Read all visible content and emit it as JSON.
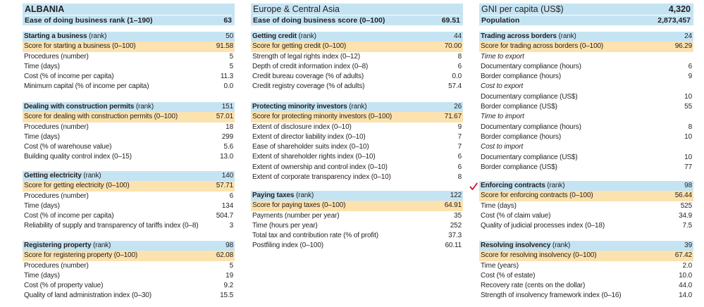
{
  "header": {
    "country": "ALBANIA",
    "region": "Europe & Central Asia",
    "gni_label": "GNI per capita (US$)",
    "gni_value": "4,320",
    "ease_rank_label": "Ease of doing business rank (1–190)",
    "ease_rank_value": "63",
    "ease_score_label": "Ease of doing business score (0–100)",
    "ease_score_value": "69.51",
    "population_label": "Population",
    "population_value": "2,873,457"
  },
  "columns": [
    [
      {
        "title": "Starting a business",
        "rank_label": "(rank)",
        "rank": "50",
        "score_label": "Score for starting a business (0–100)",
        "score": "91.58",
        "rows": [
          {
            "label": "Procedures (number)",
            "value": "5"
          },
          {
            "label": "Time (days)",
            "value": "5"
          },
          {
            "label": "Cost (% of income per capita)",
            "value": "11.3"
          },
          {
            "label": "Minimum capital (% of income per capita)",
            "value": "0.0"
          }
        ]
      },
      {
        "title": "Dealing with construction permits",
        "rank_label": "(rank)",
        "rank": "151",
        "score_label": "Score for dealing with construction permits (0–100)",
        "score": "57.01",
        "rows": [
          {
            "label": "Procedures (number)",
            "value": "18"
          },
          {
            "label": "Time (days)",
            "value": "299"
          },
          {
            "label": "Cost (% of warehouse value)",
            "value": "5.6"
          },
          {
            "label": "Building quality control index (0–15)",
            "value": "13.0"
          }
        ]
      },
      {
        "title": "Getting electricity",
        "rank_label": "(rank)",
        "rank": "140",
        "score_label": "Score for getting electricity (0–100)",
        "score": "57.71",
        "rows": [
          {
            "label": "Procedures (number)",
            "value": "6"
          },
          {
            "label": "Time (days)",
            "value": "134"
          },
          {
            "label": "Cost (% of income per capita)",
            "value": "504.7"
          },
          {
            "label": "Reliability of supply and transparency of tariffs index (0–8)",
            "value": "3"
          }
        ]
      },
      {
        "title": "Registering property",
        "rank_label": "(rank)",
        "rank": "98",
        "score_label": "Score for registering property (0–100)",
        "score": "62.08",
        "rows": [
          {
            "label": "Procedures (number)",
            "value": "5"
          },
          {
            "label": "Time (days)",
            "value": "19"
          },
          {
            "label": "Cost (% of property value)",
            "value": "9.2"
          },
          {
            "label": "Quality of land administration index (0–30)",
            "value": "15.5"
          }
        ]
      }
    ],
    [
      {
        "title": "Getting credit",
        "rank_label": "(rank)",
        "rank": "44",
        "score_label": "Score for getting credit (0–100)",
        "score": "70.00",
        "rows": [
          {
            "label": "Strength of legal rights index (0–12)",
            "value": "8"
          },
          {
            "label": "Depth of credit information index (0–8)",
            "value": "6"
          },
          {
            "label": "Credit bureau coverage (% of adults)",
            "value": "0.0"
          },
          {
            "label": "Credit registry coverage (% of adults)",
            "value": "57.4"
          }
        ]
      },
      {
        "title": "Protecting minority investors",
        "rank_label": "(rank)",
        "rank": "26",
        "score_label": "Score for protecting minority investors (0–100)",
        "score": "71.67",
        "rows": [
          {
            "label": "Extent of disclosure index (0–10)",
            "value": "9"
          },
          {
            "label": "Extent of director liability index (0–10)",
            "value": "7"
          },
          {
            "label": "Ease of shareholder suits index (0–10)",
            "value": "7"
          },
          {
            "label": "Extent of shareholder rights index (0–10)",
            "value": "6"
          },
          {
            "label": "Extent of ownership and control index (0–10)",
            "value": "6"
          },
          {
            "label": "Extent of corporate transparency index (0–10)",
            "value": "8"
          }
        ]
      },
      {
        "title": "Paying taxes",
        "rank_label": "(rank)",
        "rank": "122",
        "score_label": "Score for paying taxes (0–100)",
        "score": "64.91",
        "rows": [
          {
            "label": "Payments (number per year)",
            "value": "35"
          },
          {
            "label": "Time (hours per year)",
            "value": "252"
          },
          {
            "label": "Total tax and contribution rate (% of profit)",
            "value": "37.3"
          },
          {
            "label": "Postfiling index (0–100)",
            "value": "60.11"
          }
        ]
      }
    ],
    [
      {
        "title": "Trading across borders",
        "rank_label": "(rank)",
        "rank": "24",
        "score_label": "Score for trading across borders (0–100)",
        "score": "96.29",
        "rows": [
          {
            "label": "Time to export",
            "value": "",
            "italic": true
          },
          {
            "label": "Documentary compliance (hours)",
            "value": "6"
          },
          {
            "label": "Border compliance (hours)",
            "value": "9"
          },
          {
            "label": "Cost to export",
            "value": "",
            "italic": true
          },
          {
            "label": "Documentary compliance (US$)",
            "value": "10"
          },
          {
            "label": "Border compliance (US$)",
            "value": "55"
          },
          {
            "label": "Time to import",
            "value": "",
            "italic": true
          },
          {
            "label": "Documentary compliance (hours)",
            "value": "8"
          },
          {
            "label": "Border compliance (hours)",
            "value": "10"
          },
          {
            "label": "Cost to import",
            "value": "",
            "italic": true
          },
          {
            "label": "Documentary compliance (US$)",
            "value": "10"
          },
          {
            "label": "Border compliance (US$)",
            "value": "77"
          }
        ]
      },
      {
        "title": "Enforcing contracts",
        "rank_label": "(rank)",
        "rank": "98",
        "score_label": "Score for enforcing contracts (0–100)",
        "score": "56.44",
        "rows": [
          {
            "label": "Time (days)",
            "value": "525"
          },
          {
            "label": "Cost (% of claim value)",
            "value": "34.9"
          },
          {
            "label": "Quality of judicial processes index (0–18)",
            "value": "7.5"
          }
        ]
      },
      {
        "title": "Resolving insolvency",
        "rank_label": "(rank)",
        "rank": "39",
        "score_label": "Score for resolving insolvency (0–100)",
        "score": "67.42",
        "rows": [
          {
            "label": "Time (years)",
            "value": "2.0"
          },
          {
            "label": "Cost (% of estate)",
            "value": "10.0"
          },
          {
            "label": "Recovery rate (cents on the dollar)",
            "value": "44.0"
          },
          {
            "label": "Strength of insolvency framework index (0–16)",
            "value": "14.0"
          }
        ]
      }
    ]
  ],
  "colors": {
    "header_blue": "#c5e4f3",
    "score_orange": "#fce2ae",
    "check_red": "#c8102e"
  }
}
